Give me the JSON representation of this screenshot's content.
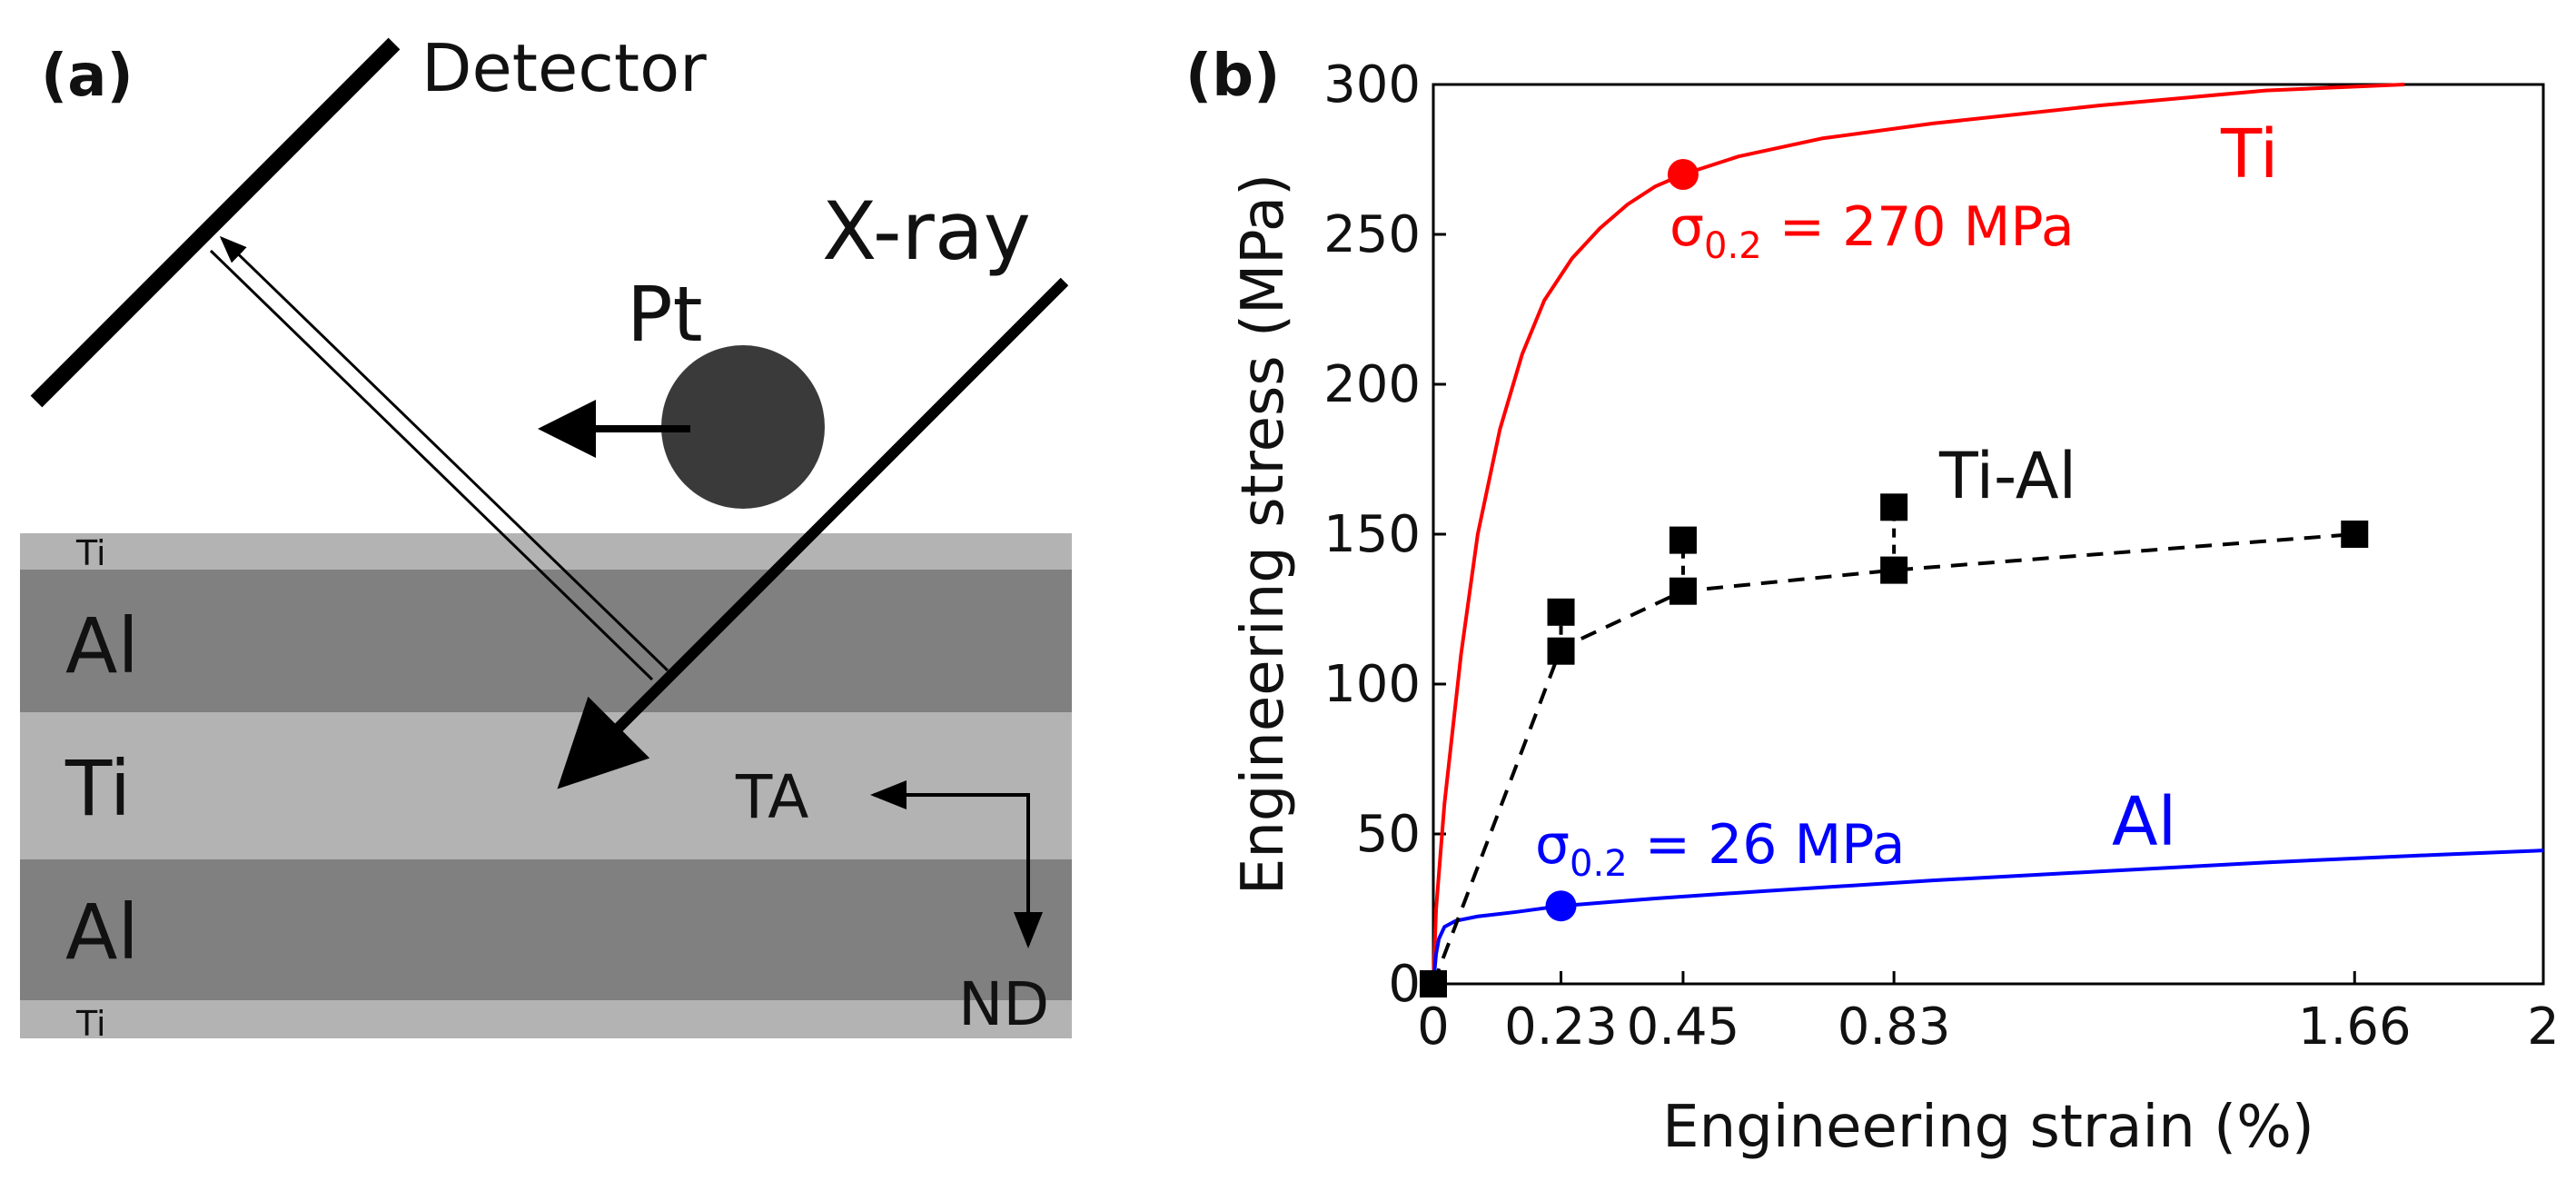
{
  "panel_a": {
    "label": "(a)",
    "detector_label": "Detector",
    "xray_label": "X-ray",
    "pt_label": "Pt",
    "layers": [
      {
        "name": "Ti",
        "kind": "thin"
      },
      {
        "name": "Al",
        "kind": "thick"
      },
      {
        "name": "Ti",
        "kind": "thick"
      },
      {
        "name": "Al",
        "kind": "thick"
      },
      {
        "name": "Ti",
        "kind": "thin"
      }
    ],
    "axis_ta": "TA",
    "axis_nd": "ND",
    "colors": {
      "ti_layer": "#b3b3b3",
      "al_layer": "#808080",
      "pt_particle": "#3a3a3a"
    }
  },
  "panel_b": {
    "label": "(b)",
    "annotations": {
      "ti_label": "Ti",
      "al_label": "Al",
      "tial_label": "Ti-Al",
      "ti_yield_sigma": "σ",
      "ti_yield_sub": "0.2",
      "ti_yield_value": " = 270 MPa",
      "al_yield_sigma": "σ",
      "al_yield_sub": "0.2",
      "al_yield_value": " = 26 MPa"
    }
  },
  "chart_data": {
    "type": "line",
    "xlabel": "Engineering strain (%)",
    "ylabel": "Engineering stress (MPa)",
    "xlim": [
      0,
      2
    ],
    "ylim": [
      0,
      300
    ],
    "xticks": [
      0,
      0.23,
      0.45,
      0.83,
      1.66,
      2
    ],
    "xtick_labels": [
      "0",
      "0.23",
      "0.45",
      "0.83",
      "1.66",
      "2"
    ],
    "yticks": [
      0,
      50,
      100,
      150,
      200,
      250,
      300
    ],
    "ytick_labels": [
      "0",
      "50",
      "100",
      "150",
      "200",
      "250",
      "300"
    ],
    "series": [
      {
        "name": "Ti",
        "color": "#ff0000",
        "style": "solid",
        "x": [
          0,
          0.005,
          0.02,
          0.05,
          0.08,
          0.12,
          0.16,
          0.2,
          0.25,
          0.3,
          0.35,
          0.4,
          0.45,
          0.55,
          0.7,
          0.9,
          1.2,
          1.5,
          1.75
        ],
        "y": [
          0,
          25,
          60,
          110,
          150,
          185,
          210,
          228,
          242,
          252,
          260,
          266,
          270,
          276,
          282,
          287,
          293,
          298,
          300
        ],
        "yield_point": {
          "x": 0.45,
          "y": 270
        }
      },
      {
        "name": "Al",
        "color": "#0000ff",
        "style": "solid",
        "x": [
          0,
          0.005,
          0.01,
          0.02,
          0.04,
          0.08,
          0.15,
          0.23,
          0.4,
          0.6,
          0.9,
          1.2,
          1.5,
          1.8,
          2.0
        ],
        "y": [
          0,
          10,
          15,
          19,
          21,
          22.5,
          24,
          26,
          28.5,
          31,
          34.5,
          37.5,
          40.5,
          43,
          44.5
        ],
        "yield_point": {
          "x": 0.23,
          "y": 26
        }
      },
      {
        "name": "Ti-Al",
        "color": "#000000",
        "style": "dashed",
        "line_x": [
          0,
          0.23,
          0.45,
          0.83,
          1.66
        ],
        "line_y": [
          0,
          112,
          131,
          138,
          150
        ],
        "points_x": [
          0,
          0.23,
          0.23,
          0.45,
          0.45,
          0.83,
          0.83,
          1.66
        ],
        "points_y": [
          0,
          124,
          111,
          148,
          131,
          159,
          138,
          150
        ],
        "error_bars": [
          {
            "x": 0.23,
            "low": 111,
            "high": 124
          },
          {
            "x": 0.45,
            "low": 131,
            "high": 148
          },
          {
            "x": 0.83,
            "low": 138,
            "high": 159
          }
        ]
      }
    ]
  }
}
